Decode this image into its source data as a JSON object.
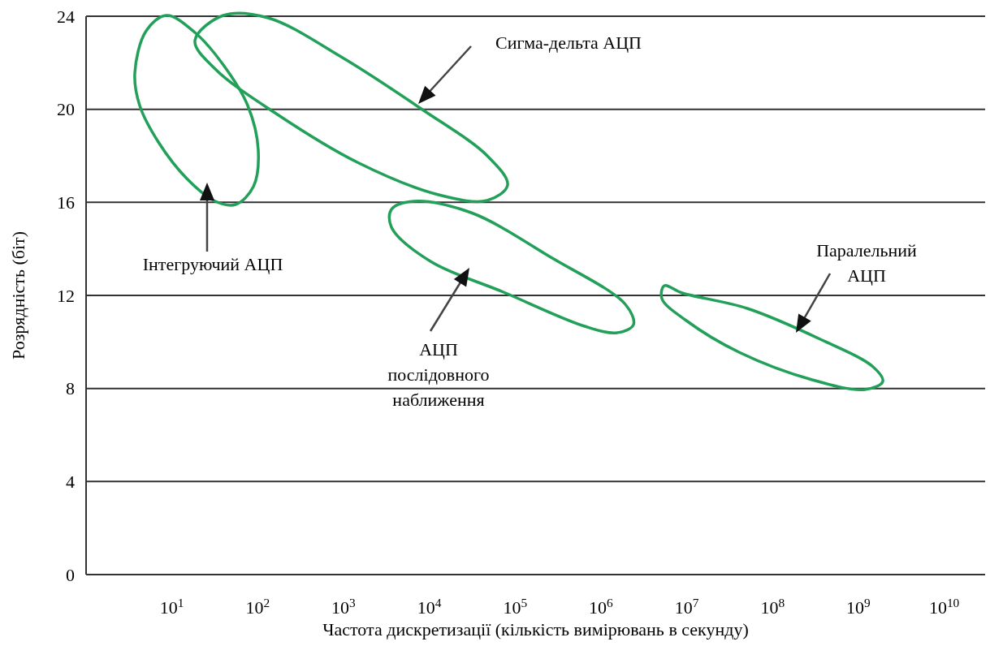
{
  "chart_data": {
    "type": "line",
    "xlabel": "Частота дискретизації (кількість вимірювань в секунду)",
    "ylabel": "Розрядність (біт)",
    "log": "x",
    "grid": "y",
    "xlim": [
      1,
      30000000000
    ],
    "ylim": [
      0,
      24
    ],
    "xticks": [
      {
        "value": 10,
        "label": "10$^{1}$"
      },
      {
        "value": 100,
        "label": "10$^{2}$"
      },
      {
        "value": 1000,
        "label": "10$^{3}$"
      },
      {
        "value": 10000,
        "label": "10$^{4}$"
      },
      {
        "value": 100000,
        "label": "10$^{5}$"
      },
      {
        "value": 1000000,
        "label": "10$^{6}$"
      },
      {
        "value": 10000000,
        "label": "10$^{7}$"
      },
      {
        "value": 100000000,
        "label": "10$^{8}$"
      },
      {
        "value": 1000000000,
        "label": "10$^{9}$"
      },
      {
        "value": 10000000000,
        "label": "10$^{10}$"
      }
    ],
    "yticks": [
      0,
      4,
      8,
      12,
      16,
      20,
      24
    ],
    "annotations": [
      "Сигма-дельта АЦП",
      "Інтегруючий АЦП",
      "АЦП\nпослідовного\nнаближення",
      "Паралельний\nАЦП"
    ]
  }
}
